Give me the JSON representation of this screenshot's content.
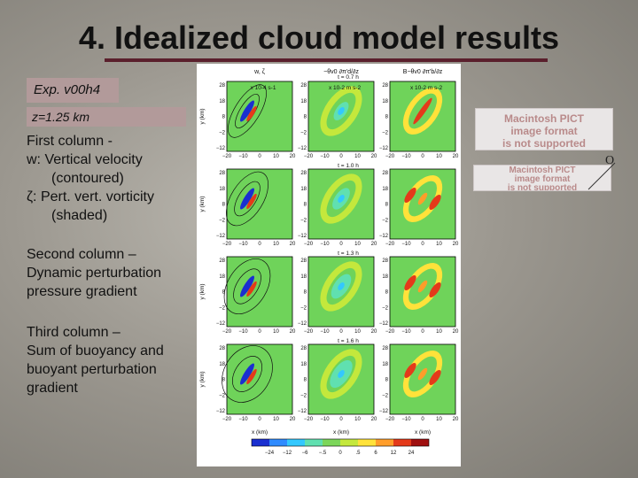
{
  "slide": {
    "title": "4. Idealized cloud model results",
    "exp_label": "Exp. v00h4",
    "z_label": "z=1.25 km",
    "col1": {
      "heading": "First column -",
      "line1": "w: Vertical velocity",
      "line2": "(contoured)",
      "line3": "ζ: Pert. vert. vorticity",
      "line4": "(shaded)"
    },
    "col2": {
      "line1": "Second column –",
      "line2": "Dynamic perturbation",
      "line3": "pressure gradient"
    },
    "col3": {
      "line1": "Third column –",
      "line2": "Sum of buoyancy and",
      "line3": "buoyant perturbation",
      "line4": "gradient"
    },
    "pict_placeholder_1": [
      "Macintosh PICT",
      "image format",
      "is not supported"
    ],
    "pict_placeholder_2": [
      "Macintosh PICT",
      "image format",
      "is not supported"
    ],
    "marker_label": "O"
  },
  "figure": {
    "column_headers": [
      "w, ζ",
      "−θv0 ∂π'd/∂z",
      "B−θv0 ∂π'b/∂z"
    ],
    "units": [
      "x 10-4 s-1",
      "x 10-2 m s-2",
      "x 10-2 m s-2"
    ],
    "times": [
      "t = 0.7 h",
      "t = 1.0 h",
      "t = 1.3 h",
      "t = 1.6 h"
    ],
    "y_ticks": [
      "28",
      "18",
      "8",
      "−2",
      "−12"
    ],
    "x_ticks": [
      "−20",
      "−10",
      "0",
      "10",
      "20"
    ],
    "x_axis_label": "x (km)",
    "y_axis_label": "y (km)",
    "colorbar_ticks": [
      "−24",
      "−12",
      "−6",
      "−.5",
      "0",
      ".5",
      "6",
      "12",
      "24"
    ],
    "colorbar_colors": [
      "#1a2fd0",
      "#2f8bff",
      "#33c8ff",
      "#60e0b0",
      "#7cd65a",
      "#c4e83c",
      "#ffe23a",
      "#ff9d2a",
      "#e43a1a",
      "#a01010"
    ],
    "field_color": "#6fd35a"
  }
}
